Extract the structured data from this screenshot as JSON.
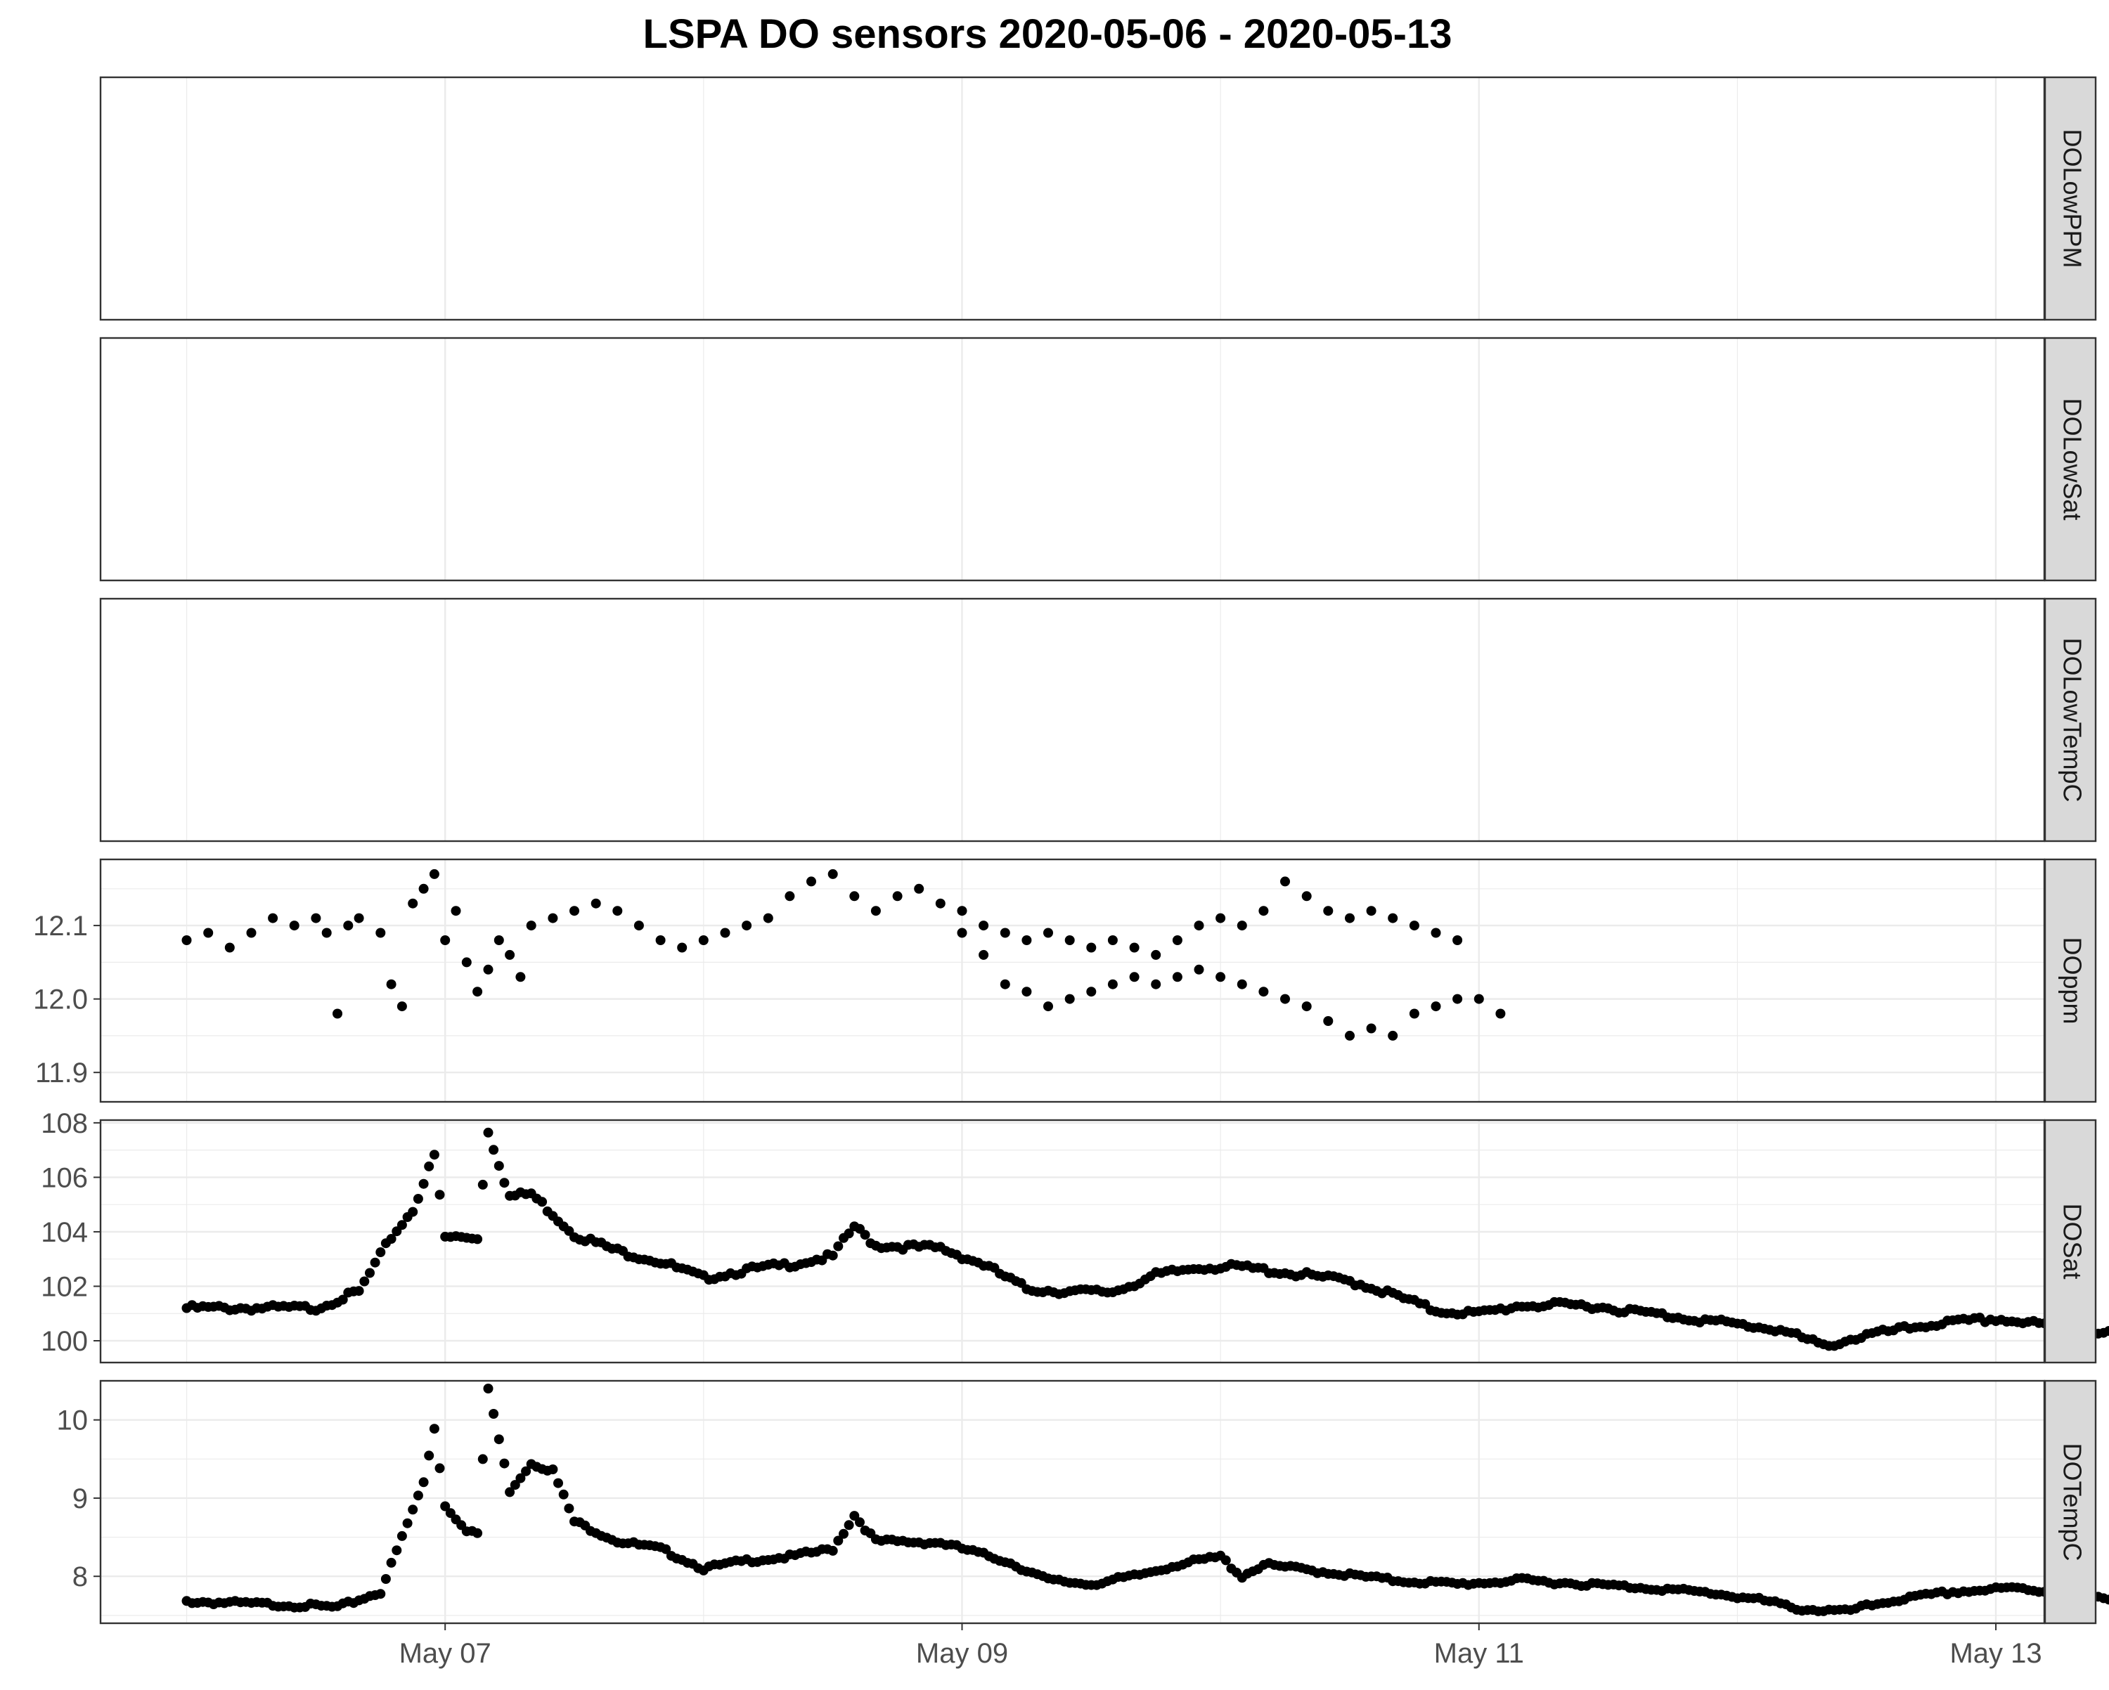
{
  "chart_data": {
    "type": "scatter",
    "title": "LSPA DO sensors 2020-05-06 - 2020-05-13",
    "xlabel": "",
    "ylabel": "",
    "x_axis": {
      "type": "date",
      "range": [
        "2020-05-06T00:00",
        "2020-05-13T00:00"
      ],
      "ticks": [
        {
          "value": "2020-05-07",
          "label": "May 07"
        },
        {
          "value": "2020-05-09",
          "label": "May 09"
        },
        {
          "value": "2020-05-11",
          "label": "May 11"
        },
        {
          "value": "2020-05-13",
          "label": "May 13"
        }
      ]
    },
    "grid": true,
    "point_color": "#000000",
    "panels": [
      {
        "name": "DOLowPPM",
        "empty": true,
        "ylim": null,
        "y_ticks": [],
        "series": []
      },
      {
        "name": "DOLowSat",
        "empty": true,
        "ylim": null,
        "y_ticks": [],
        "series": []
      },
      {
        "name": "DOLowTempC",
        "empty": true,
        "ylim": null,
        "y_ticks": [],
        "series": []
      },
      {
        "name": "DOppm",
        "ylim": [
          11.86,
          12.19
        ],
        "y_ticks": [
          11.9,
          12.0,
          12.1
        ],
        "y_tick_labels": [
          "11.9",
          "12.0",
          "12.1"
        ],
        "series": [
          [
            "2020-05-06T00:00",
            12.08
          ],
          [
            "2020-05-06T02:00",
            12.09
          ],
          [
            "2020-05-06T04:00",
            12.07
          ],
          [
            "2020-05-06T06:00",
            12.09
          ],
          [
            "2020-05-06T08:00",
            12.11
          ],
          [
            "2020-05-06T10:00",
            12.1
          ],
          [
            "2020-05-06T12:00",
            12.11
          ],
          [
            "2020-05-06T13:00",
            12.09
          ],
          [
            "2020-05-06T14:00",
            11.98
          ],
          [
            "2020-05-06T15:00",
            12.1
          ],
          [
            "2020-05-06T16:00",
            12.11
          ],
          [
            "2020-05-06T18:00",
            12.09
          ],
          [
            "2020-05-06T19:00",
            12.02
          ],
          [
            "2020-05-06T20:00",
            11.99
          ],
          [
            "2020-05-06T21:00",
            12.13
          ],
          [
            "2020-05-06T22:00",
            12.15
          ],
          [
            "2020-05-06T23:00",
            12.17
          ],
          [
            "2020-05-07T00:00",
            12.08
          ],
          [
            "2020-05-07T01:00",
            12.12
          ],
          [
            "2020-05-07T02:00",
            12.05
          ],
          [
            "2020-05-07T03:00",
            12.01
          ],
          [
            "2020-05-07T04:00",
            12.04
          ],
          [
            "2020-05-07T05:00",
            12.08
          ],
          [
            "2020-05-07T06:00",
            12.06
          ],
          [
            "2020-05-07T07:00",
            12.03
          ],
          [
            "2020-05-07T08:00",
            12.1
          ],
          [
            "2020-05-07T10:00",
            12.11
          ],
          [
            "2020-05-07T12:00",
            12.12
          ],
          [
            "2020-05-07T14:00",
            12.13
          ],
          [
            "2020-05-07T16:00",
            12.12
          ],
          [
            "2020-05-07T18:00",
            12.1
          ],
          [
            "2020-05-07T20:00",
            12.08
          ],
          [
            "2020-05-07T22:00",
            12.07
          ],
          [
            "2020-05-08T00:00",
            12.08
          ],
          [
            "2020-05-08T02:00",
            12.09
          ],
          [
            "2020-05-08T04:00",
            12.1
          ],
          [
            "2020-05-08T06:00",
            12.11
          ],
          [
            "2020-05-08T08:00",
            12.14
          ],
          [
            "2020-05-08T10:00",
            12.16
          ],
          [
            "2020-05-08T12:00",
            12.17
          ],
          [
            "2020-05-08T14:00",
            12.14
          ],
          [
            "2020-05-08T16:00",
            12.12
          ],
          [
            "2020-05-08T18:00",
            12.14
          ],
          [
            "2020-05-08T20:00",
            12.15
          ],
          [
            "2020-05-08T22:00",
            12.13
          ],
          [
            "2020-05-09T00:00",
            12.12
          ],
          [
            "2020-05-09T02:00",
            12.1
          ],
          [
            "2020-05-09T04:00",
            12.09
          ],
          [
            "2020-05-09T06:00",
            12.08
          ],
          [
            "2020-05-09T08:00",
            12.09
          ],
          [
            "2020-05-09T10:00",
            12.08
          ],
          [
            "2020-05-09T12:00",
            12.07
          ],
          [
            "2020-05-09T14:00",
            12.08
          ],
          [
            "2020-05-09T16:00",
            12.07
          ],
          [
            "2020-05-09T18:00",
            12.06
          ],
          [
            "2020-05-09T20:00",
            12.08
          ],
          [
            "2020-05-09T22:00",
            12.1
          ],
          [
            "2020-05-10T00:00",
            12.11
          ],
          [
            "2020-05-10T02:00",
            12.1
          ],
          [
            "2020-05-10T04:00",
            12.12
          ],
          [
            "2020-05-10T06:00",
            12.16
          ],
          [
            "2020-05-10T08:00",
            12.14
          ],
          [
            "2020-05-10T10:00",
            12.12
          ],
          [
            "2020-05-10T12:00",
            12.11
          ],
          [
            "2020-05-10T14:00",
            12.12
          ],
          [
            "2020-05-10T16:00",
            12.11
          ],
          [
            "2020-05-10T18:00",
            12.1
          ],
          [
            "2020-05-10T20:00",
            12.09
          ],
          [
            "2020-05-10T22:00",
            12.08
          ],
          [
            "2020-05-09T00:00",
            12.09
          ],
          [
            "2020-05-09T02:00",
            12.06
          ],
          [
            "2020-05-09T04:00",
            12.02
          ],
          [
            "2020-05-09T06:00",
            12.01
          ],
          [
            "2020-05-09T08:00",
            11.99
          ],
          [
            "2020-05-09T10:00",
            12.0
          ],
          [
            "2020-05-09T12:00",
            12.01
          ],
          [
            "2020-05-09T14:00",
            12.02
          ],
          [
            "2020-05-09T16:00",
            12.03
          ],
          [
            "2020-05-09T18:00",
            12.02
          ],
          [
            "2020-05-09T20:00",
            12.03
          ],
          [
            "2020-05-09T22:00",
            12.04
          ],
          [
            "2020-05-10T00:00",
            12.03
          ],
          [
            "2020-05-10T02:00",
            12.02
          ],
          [
            "2020-05-10T04:00",
            12.01
          ],
          [
            "2020-05-10T06:00",
            12.0
          ],
          [
            "2020-05-10T08:00",
            11.99
          ],
          [
            "2020-05-10T10:00",
            11.97
          ],
          [
            "2020-05-10T12:00",
            11.95
          ],
          [
            "2020-05-10T14:00",
            11.96
          ],
          [
            "2020-05-10T16:00",
            11.95
          ],
          [
            "2020-05-10T18:00",
            11.98
          ],
          [
            "2020-05-10T20:00",
            11.99
          ],
          [
            "2020-05-10T22:00",
            12.0
          ],
          [
            "2020-05-11T00:00",
            12.0
          ],
          [
            "2020-05-11T02:00",
            11.98
          ]
        ]
      },
      {
        "name": "DOSat",
        "ylim": [
          99.2,
          108.1
        ],
        "y_ticks": [
          100,
          102,
          104,
          106,
          108
        ],
        "y_tick_labels": [
          "100",
          "102",
          "104",
          "106",
          "108"
        ],
        "series": []
      },
      {
        "name": "DOTempC",
        "ylim": [
          7.4,
          10.5
        ],
        "y_ticks": [
          8,
          9,
          10
        ],
        "y_tick_labels": [
          "8",
          "9",
          "10"
        ],
        "series": []
      }
    ]
  }
}
